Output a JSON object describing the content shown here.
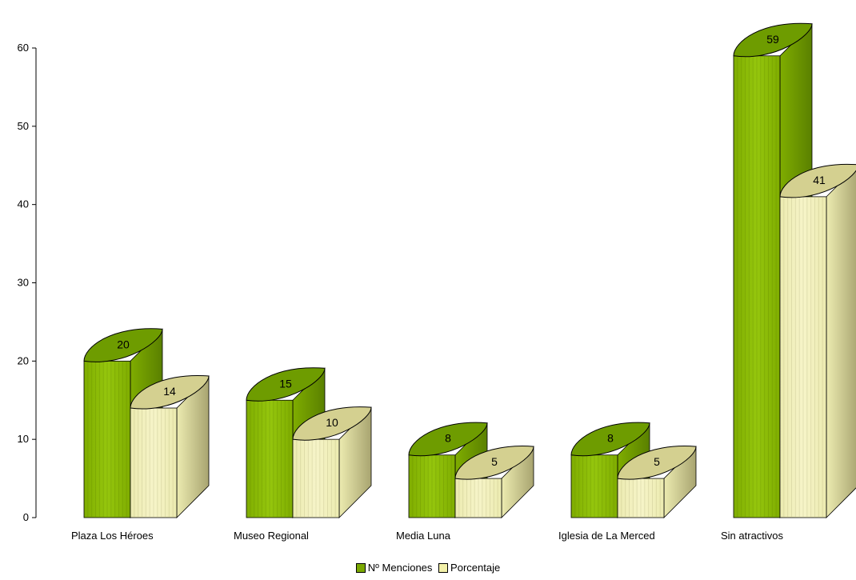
{
  "chart_data": {
    "type": "bar",
    "categories": [
      "Plaza Los Héroes",
      "Museo Regional",
      "Media Luna",
      "Iglesia de La Merced",
      "Sin atractivos"
    ],
    "series": [
      {
        "name": "Nº Menciones",
        "values": [
          20,
          15,
          8,
          8,
          59
        ],
        "color": "#7aa800"
      },
      {
        "name": "Porcentaje",
        "values": [
          14,
          10,
          5,
          5,
          41
        ],
        "color": "#f2f0a8"
      }
    ],
    "yticks": [
      "0",
      "10",
      "20",
      "30",
      "40",
      "50",
      "60"
    ],
    "ylim": [
      0,
      60
    ],
    "legend_position": "bottom",
    "grid": false,
    "style": "3d-cylinder"
  }
}
